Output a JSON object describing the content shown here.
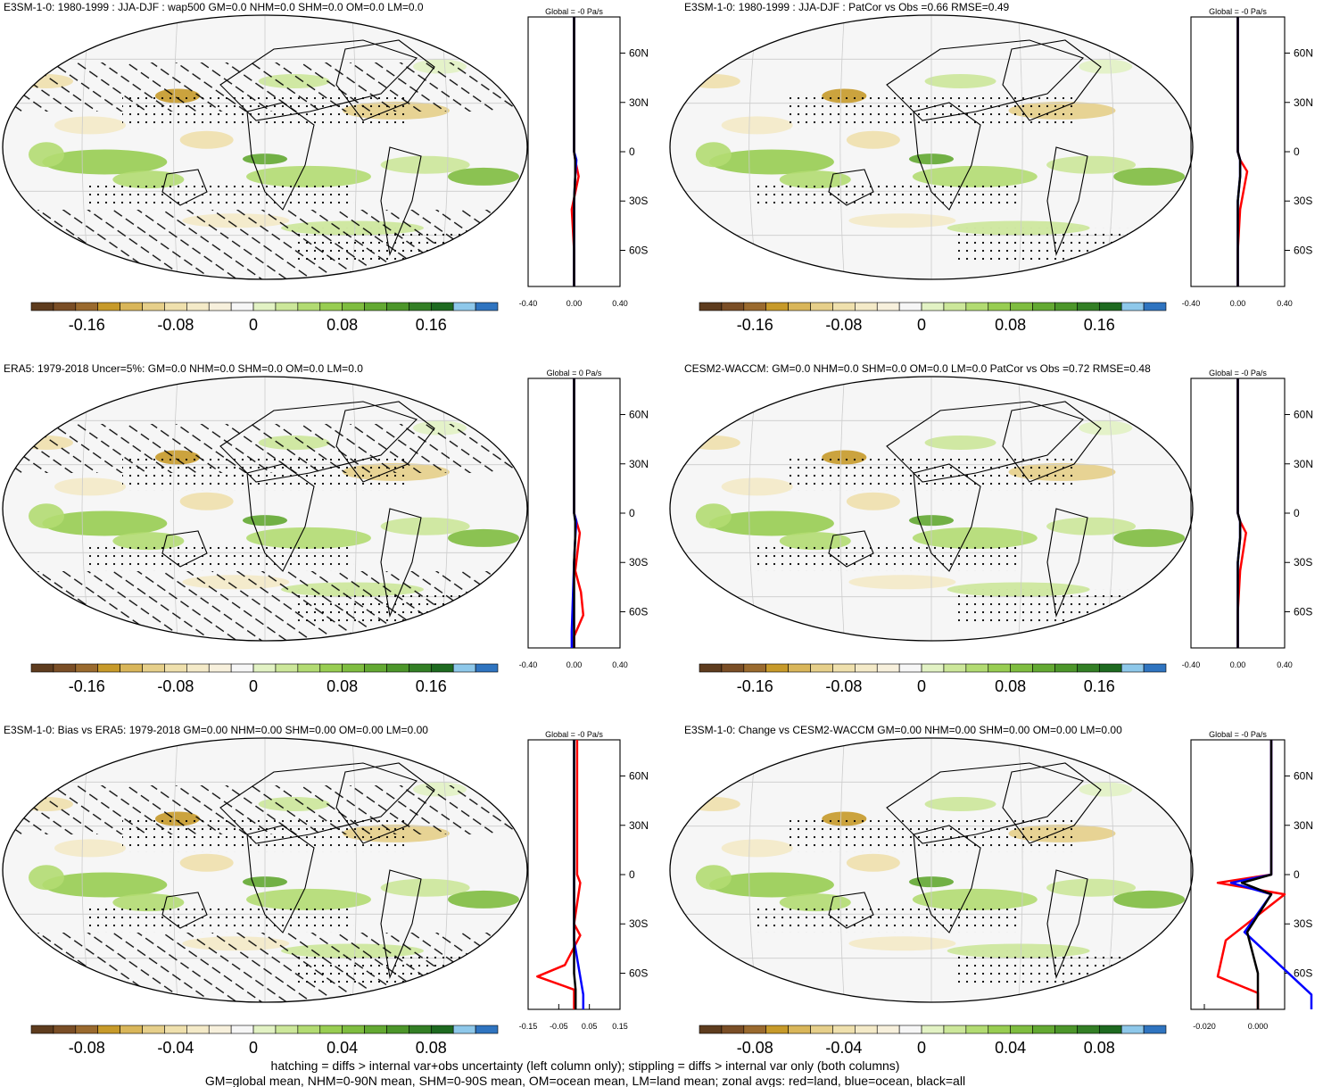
{
  "colorbar": {
    "colors": [
      "#5e3c1e",
      "#7a4e26",
      "#9a6a2e",
      "#c79a2a",
      "#d9b65a",
      "#e6cf8a",
      "#efe0ad",
      "#f4eac8",
      "#f7f0dc",
      "#f6f6f6",
      "#e2f2c4",
      "#cce79a",
      "#b2db72",
      "#98cd52",
      "#7fbd40",
      "#63a932",
      "#4c962a",
      "#337f25",
      "#1e6a20",
      "#8ec8ea",
      "#2f74c0"
    ],
    "labels_top": [
      "-0.16",
      "-0.08",
      "0",
      "0.08",
      "0.16"
    ],
    "labels_bottom": [
      "-0.08",
      "-0.04",
      "0",
      "0.04",
      "0.08"
    ]
  },
  "zonal_colors": {
    "land": "#ff0000",
    "ocean": "#0000ff",
    "all": "#000000"
  },
  "lat_ticks": [
    "60N",
    "30N",
    "0",
    "30S",
    "60S"
  ],
  "panels": [
    {
      "title": "E3SM-1-0: 1980-1999 : JJA-DJF : wap500 GM=0.0 NHM=0.0 SHM=0.0 OM=0.0 LM=0.0",
      "global": "Global = -0 Pa/s",
      "xticks": [
        "-0.40",
        "0.00",
        "0.40"
      ],
      "hatch": true,
      "cbar": "top",
      "profile": {
        "land": [
          [
            0,
            0
          ],
          [
            0.01,
            -5
          ],
          [
            0.04,
            -15
          ],
          [
            -0.02,
            -35
          ],
          [
            0,
            -60
          ],
          [
            0,
            -75
          ]
        ],
        "ocean": [
          [
            0,
            0
          ],
          [
            0.02,
            -5
          ],
          [
            0.01,
            -15
          ],
          [
            0,
            -30
          ],
          [
            0,
            -60
          ]
        ],
        "all": [
          [
            0,
            0
          ],
          [
            0.01,
            -5
          ],
          [
            0.01,
            -15
          ],
          [
            0,
            -30
          ],
          [
            0,
            -60
          ]
        ]
      }
    },
    {
      "title": "E3SM-1-0: 1980-1999 : JJA-DJF : PatCor vs Obs =0.66 RMSE=0.49",
      "global": "Global = -0 Pa/s",
      "xticks": [
        "-0.40",
        "0.00",
        "0.40"
      ],
      "hatch": false,
      "cbar": "top",
      "profile": {
        "land": [
          [
            0,
            0
          ],
          [
            0.02,
            -5
          ],
          [
            0.08,
            -12
          ],
          [
            0.02,
            -35
          ],
          [
            0,
            -60
          ]
        ],
        "ocean": [
          [
            0,
            0
          ],
          [
            0.02,
            -5
          ],
          [
            0.02,
            -15
          ],
          [
            0,
            -30
          ],
          [
            0,
            -60
          ]
        ],
        "all": [
          [
            0,
            0
          ],
          [
            0.02,
            -5
          ],
          [
            0.02,
            -15
          ],
          [
            0,
            -30
          ],
          [
            0,
            -60
          ]
        ]
      }
    },
    {
      "title": "ERA5: 1979-2018 Uncer=5%: GM=0.0 NHM=0.0 SHM=0.0 OM=0.0 LM=0.0",
      "global": "Global = 0 Pa/s",
      "xticks": [
        "-0.40",
        "0.00",
        "0.40"
      ],
      "hatch": true,
      "cbar": "top",
      "profile": {
        "land": [
          [
            0,
            0
          ],
          [
            0.02,
            -5
          ],
          [
            0.05,
            -12
          ],
          [
            0.01,
            -35
          ],
          [
            0.06,
            -48
          ],
          [
            0.08,
            -62
          ],
          [
            0,
            -75
          ]
        ],
        "ocean": [
          [
            0,
            0
          ],
          [
            0.02,
            -5
          ],
          [
            0.01,
            -15
          ],
          [
            0,
            -30
          ],
          [
            -0.02,
            -72
          ]
        ],
        "all": [
          [
            0,
            0
          ],
          [
            0.01,
            -5
          ],
          [
            0.01,
            -15
          ],
          [
            0,
            -30
          ],
          [
            0,
            -60
          ]
        ]
      }
    },
    {
      "title": "CESM2-WACCM: GM=0.0 NHM=0.0 SHM=0.0 OM=0.0 LM=0.0 PatCor vs Obs =0.72 RMSE=0.48",
      "global": "Global = -0 Pa/s",
      "xticks": [
        "-0.40",
        "0.00",
        "0.40"
      ],
      "hatch": false,
      "cbar": "top",
      "profile": {
        "land": [
          [
            0,
            0
          ],
          [
            0.02,
            -5
          ],
          [
            0.07,
            -12
          ],
          [
            0.02,
            -35
          ],
          [
            0,
            -60
          ]
        ],
        "ocean": [
          [
            0,
            0
          ],
          [
            0.02,
            -5
          ],
          [
            0.02,
            -15
          ],
          [
            0,
            -30
          ],
          [
            0,
            -60
          ]
        ],
        "all": [
          [
            0,
            0
          ],
          [
            0.02,
            -5
          ],
          [
            0.02,
            -15
          ],
          [
            0,
            -30
          ],
          [
            0,
            -60
          ]
        ]
      }
    },
    {
      "title": "E3SM-1-0: Bias vs ERA5: 1979-2018 GM=0.00 NHM=0.00 SHM=0.00 OM=0.00 LM=0.00",
      "global": "Global = -0 Pa/s",
      "xticks": [
        "-0.15",
        "-0.05",
        "0.05",
        "0.15"
      ],
      "hatch": true,
      "cbar": "bottom",
      "profile": {
        "land": [
          [
            0.01,
            0
          ],
          [
            0.02,
            -5
          ],
          [
            0,
            -30
          ],
          [
            0.02,
            -37
          ],
          [
            -0.03,
            -55
          ],
          [
            -0.12,
            -62
          ],
          [
            0,
            -70
          ]
        ],
        "ocean": [
          [
            0,
            0
          ],
          [
            0,
            -10
          ],
          [
            0,
            -40
          ],
          [
            0.03,
            -73
          ]
        ],
        "all": [
          [
            0,
            0
          ],
          [
            0,
            -30
          ],
          [
            0,
            -60
          ],
          [
            0.005,
            -70
          ]
        ]
      }
    },
    {
      "title": "E3SM-1-0: Change vs CESM2-WACCM GM=0.00 NHM=0.00 SHM=0.00 OM=0.00 LM=0.00",
      "global": "Global = -0 Pa/s",
      "xticks": [
        "-0.020",
        "0.000"
      ],
      "hatch": false,
      "cbar": "bottom",
      "profile": {
        "land": [
          [
            0.005,
            0
          ],
          [
            -0.015,
            -5
          ],
          [
            0.01,
            -12
          ],
          [
            -0.012,
            -40
          ],
          [
            -0.015,
            -62
          ],
          [
            0,
            -72
          ]
        ],
        "ocean": [
          [
            0.005,
            0
          ],
          [
            -0.01,
            -5
          ],
          [
            0.005,
            -12
          ],
          [
            -0.005,
            -35
          ],
          [
            0.02,
            -73
          ]
        ],
        "all": [
          [
            0.005,
            0
          ],
          [
            -0.006,
            -5
          ],
          [
            0.005,
            -12
          ],
          [
            -0.004,
            -35
          ],
          [
            0,
            -60
          ]
        ]
      }
    }
  ],
  "chart_data": {
    "type": "heatmap",
    "variable": "wap500",
    "units": "Pa/s",
    "panels": [
      {
        "title": "E3SM-1-0: 1980-1999 : JJA-DJF : wap500 GM=0.0 NHM=0.0 SHM=0.0 OM=0.0 LM=0.0",
        "colorbar_ticks": [
          -0.16,
          -0.08,
          0,
          0.08,
          0.16
        ],
        "zonal_xlim": [
          -0.4,
          0.4
        ]
      },
      {
        "title": "E3SM-1-0: 1980-1999 : JJA-DJF : PatCor vs Obs =0.66 RMSE=0.49",
        "colorbar_ticks": [
          -0.16,
          -0.08,
          0,
          0.08,
          0.16
        ],
        "zonal_xlim": [
          -0.4,
          0.4
        ]
      },
      {
        "title": "ERA5: 1979-2018 Uncer=5%: GM=0.0 NHM=0.0 SHM=0.0 OM=0.0 LM=0.0",
        "colorbar_ticks": [
          -0.16,
          -0.08,
          0,
          0.08,
          0.16
        ],
        "zonal_xlim": [
          -0.4,
          0.4
        ]
      },
      {
        "title": "CESM2-WACCM: GM=0.0 NHM=0.0 SHM=0.0 OM=0.0 LM=0.0 PatCor vs Obs =0.72 RMSE=0.48",
        "colorbar_ticks": [
          -0.16,
          -0.08,
          0,
          0.08,
          0.16
        ],
        "zonal_xlim": [
          -0.4,
          0.4
        ]
      },
      {
        "title": "E3SM-1-0: Bias vs ERA5: 1979-2018 GM=0.00 NHM=0.00 SHM=0.00 OM=0.00 LM=0.00",
        "colorbar_ticks": [
          -0.08,
          -0.04,
          0,
          0.04,
          0.08
        ],
        "zonal_xlim": [
          -0.15,
          0.15
        ]
      },
      {
        "title": "E3SM-1-0: Change vs CESM2-WACCM GM=0.00 NHM=0.00 SHM=0.00 OM=0.00 LM=0.00",
        "colorbar_ticks": [
          -0.08,
          -0.04,
          0,
          0.04,
          0.08
        ],
        "zonal_xlim": [
          -0.025,
          0.01
        ]
      }
    ],
    "lat_ticks": [
      "60N",
      "30N",
      "0",
      "30S",
      "60S"
    ]
  },
  "footer": {
    "line1": "hatching = diffs > internal var+obs uncertainty (left column only); stippling = diffs > internal var only (both columns)",
    "line2": "GM=global mean, NHM=0-90N mean, SHM=0-90S mean, OM=ocean mean, LM=land mean; zonal avgs: red=land, blue=ocean, black=all"
  }
}
